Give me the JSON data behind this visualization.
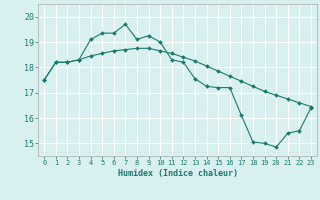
{
  "line1_x": [
    0,
    1,
    2,
    3,
    4,
    5,
    6,
    7,
    8,
    9,
    10,
    11,
    12,
    13,
    14,
    15,
    16,
    17,
    18,
    19,
    20,
    21,
    22,
    23
  ],
  "line1_y": [
    17.5,
    18.2,
    18.2,
    18.3,
    19.1,
    19.35,
    19.35,
    19.7,
    19.1,
    19.25,
    19.0,
    18.3,
    18.2,
    17.55,
    17.25,
    17.2,
    17.2,
    16.1,
    15.05,
    15.0,
    14.85,
    15.4,
    15.5,
    16.4
  ],
  "line2_x": [
    0,
    1,
    2,
    3,
    4,
    5,
    6,
    7,
    8,
    9,
    10,
    11,
    12,
    13,
    14,
    15,
    16,
    17,
    18,
    19,
    20,
    21,
    22,
    23
  ],
  "line2_y": [
    17.5,
    18.2,
    18.2,
    18.3,
    18.45,
    18.55,
    18.65,
    18.7,
    18.75,
    18.75,
    18.65,
    18.55,
    18.4,
    18.25,
    18.05,
    17.85,
    17.65,
    17.45,
    17.25,
    17.05,
    16.9,
    16.75,
    16.6,
    16.45
  ],
  "line_color": "#1a7a6e",
  "bg_color": "#d8f0f0",
  "grid_color": "#ffffff",
  "xlabel": "Humidex (Indice chaleur)",
  "ylim": [
    14.5,
    20.5
  ],
  "xlim": [
    -0.5,
    23.5
  ],
  "yticks": [
    15,
    16,
    17,
    18,
    19,
    20
  ],
  "xticks": [
    0,
    1,
    2,
    3,
    4,
    5,
    6,
    7,
    8,
    9,
    10,
    11,
    12,
    13,
    14,
    15,
    16,
    17,
    18,
    19,
    20,
    21,
    22,
    23
  ],
  "xlabel_fontsize": 6.0,
  "ytick_fontsize": 6.0,
  "xtick_fontsize": 5.0
}
